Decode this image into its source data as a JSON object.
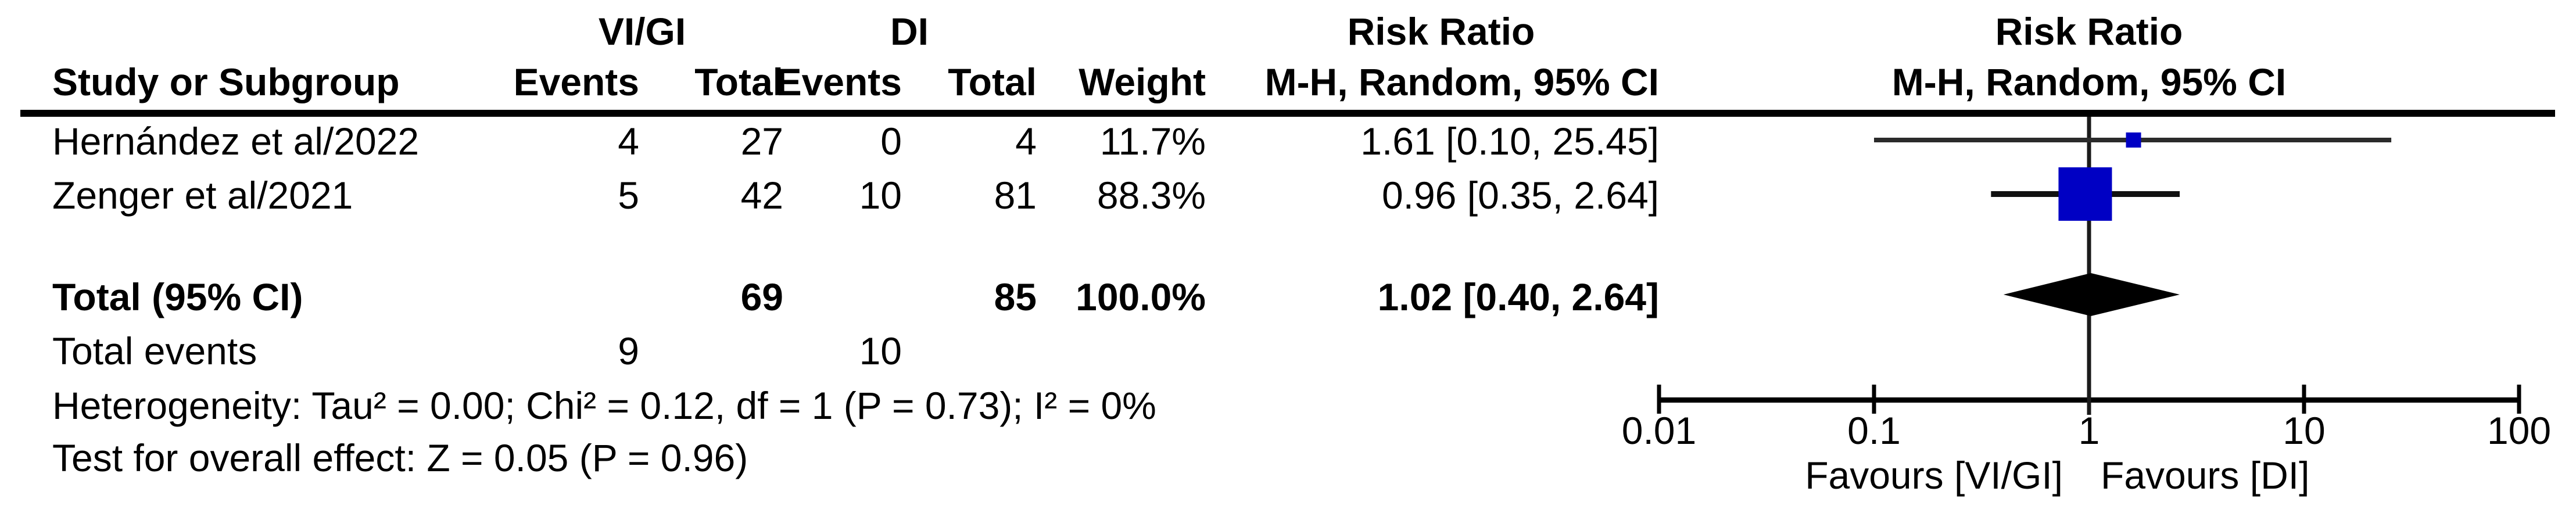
{
  "table": {
    "headers": {
      "study": "Study or Subgroup",
      "group1": "VI/GI",
      "group2": "DI",
      "events": "Events",
      "total": "Total",
      "weight": "Weight",
      "effect": "Risk Ratio",
      "method": "M-H, Random, 95% CI"
    }
  },
  "chart_data": {
    "type": "forest",
    "effect_measure": "Risk Ratio",
    "model": "M-H, Random, 95% CI",
    "x_scale": "log10",
    "x_ticks": [
      0.01,
      0.1,
      1,
      10,
      100
    ],
    "x_tick_labels": [
      "0.01",
      "0.1",
      "1",
      "10",
      "100"
    ],
    "x_range": [
      0.01,
      100
    ],
    "favours_left": "Favours [VI/GI]",
    "favours_right": "Favours [DI]",
    "marker_color": "#0000C4",
    "ci_line_colors": [
      "#2b2b2b",
      "#111111"
    ],
    "summary_color": "#000000",
    "studies": [
      {
        "label": "Hernández et al/2022",
        "events_exp": "4",
        "total_exp": "27",
        "events_ctrl": "0",
        "total_ctrl": "4",
        "weight": "11.7%",
        "rr": 1.61,
        "ci_low": 0.1,
        "ci_high": 25.45,
        "estimate_label": "1.61 [0.10, 25.45]"
      },
      {
        "label": "Zenger et al/2021",
        "events_exp": "5",
        "total_exp": "42",
        "events_ctrl": "10",
        "total_ctrl": "81",
        "weight": "88.3%",
        "rr": 0.96,
        "ci_low": 0.35,
        "ci_high": 2.64,
        "estimate_label": "0.96 [0.35, 2.64]"
      }
    ],
    "total": {
      "label": "Total (95% CI)",
      "total_exp": "69",
      "total_ctrl": "85",
      "weight": "100.0%",
      "rr": 1.02,
      "ci_low": 0.4,
      "ci_high": 2.64,
      "estimate_label": "1.02 [0.40, 2.64]"
    },
    "total_events": {
      "label": "Total events",
      "exp": "9",
      "ctrl": "10"
    },
    "heterogeneity": "Heterogeneity: Tau² = 0.00; Chi² = 0.12, df = 1 (P = 0.73); I² = 0%",
    "overall_effect": "Test for overall effect: Z = 0.05 (P = 0.96)"
  }
}
